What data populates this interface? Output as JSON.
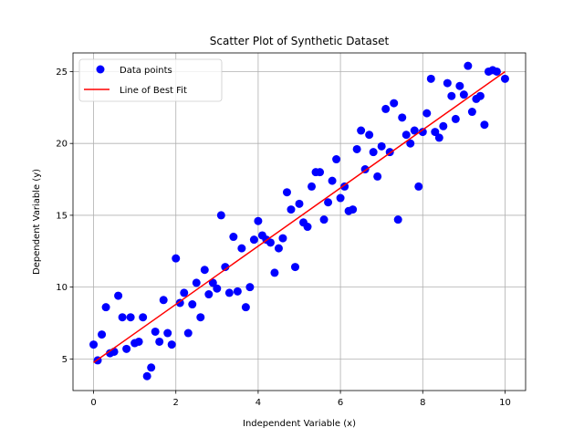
{
  "chart_data": {
    "type": "scatter",
    "title": "Scatter Plot of Synthetic Dataset",
    "xlabel": "Independent Variable (x)",
    "ylabel": "Dependent Variable (y)",
    "xlim": [
      -0.5,
      10.5
    ],
    "ylim": [
      2.8,
      26.3
    ],
    "xticks": [
      0,
      2,
      4,
      6,
      8,
      10
    ],
    "yticks": [
      5,
      10,
      15,
      20,
      25
    ],
    "grid": true,
    "legend_position": "top-left",
    "series": [
      {
        "name": "Data points",
        "kind": "scatter",
        "color": "#0000ff",
        "points": [
          [
            0.0,
            6.0
          ],
          [
            0.1,
            4.9
          ],
          [
            0.2,
            6.7
          ],
          [
            0.3,
            8.6
          ],
          [
            0.4,
            5.4
          ],
          [
            0.5,
            5.5
          ],
          [
            0.6,
            9.4
          ],
          [
            0.7,
            7.9
          ],
          [
            0.8,
            5.7
          ],
          [
            0.9,
            7.9
          ],
          [
            1.0,
            6.1
          ],
          [
            1.1,
            6.2
          ],
          [
            1.2,
            7.9
          ],
          [
            1.3,
            3.8
          ],
          [
            1.4,
            4.4
          ],
          [
            1.5,
            6.9
          ],
          [
            1.6,
            6.2
          ],
          [
            1.7,
            9.1
          ],
          [
            1.8,
            6.8
          ],
          [
            1.9,
            6.0
          ],
          [
            2.0,
            12.0
          ],
          [
            2.1,
            8.9
          ],
          [
            2.2,
            9.6
          ],
          [
            2.3,
            6.8
          ],
          [
            2.4,
            8.8
          ],
          [
            2.5,
            10.3
          ],
          [
            2.6,
            7.9
          ],
          [
            2.7,
            11.2
          ],
          [
            2.8,
            9.5
          ],
          [
            2.9,
            10.3
          ],
          [
            3.0,
            9.9
          ],
          [
            3.1,
            15.0
          ],
          [
            3.2,
            11.4
          ],
          [
            3.3,
            9.6
          ],
          [
            3.4,
            13.5
          ],
          [
            3.5,
            9.7
          ],
          [
            3.6,
            12.7
          ],
          [
            3.7,
            8.6
          ],
          [
            3.8,
            10.0
          ],
          [
            3.9,
            13.3
          ],
          [
            4.0,
            14.6
          ],
          [
            4.1,
            13.6
          ],
          [
            4.2,
            13.3
          ],
          [
            4.3,
            13.1
          ],
          [
            4.4,
            11.0
          ],
          [
            4.5,
            12.7
          ],
          [
            4.6,
            13.4
          ],
          [
            4.7,
            16.6
          ],
          [
            4.8,
            15.4
          ],
          [
            4.9,
            11.4
          ],
          [
            5.0,
            15.8
          ],
          [
            5.1,
            14.5
          ],
          [
            5.2,
            14.2
          ],
          [
            5.3,
            17.0
          ],
          [
            5.4,
            18.0
          ],
          [
            5.5,
            18.0
          ],
          [
            5.6,
            14.7
          ],
          [
            5.7,
            15.9
          ],
          [
            5.8,
            17.4
          ],
          [
            5.9,
            18.9
          ],
          [
            6.0,
            16.2
          ],
          [
            6.1,
            17.0
          ],
          [
            6.2,
            15.3
          ],
          [
            6.3,
            15.4
          ],
          [
            6.4,
            19.6
          ],
          [
            6.5,
            20.9
          ],
          [
            6.6,
            18.2
          ],
          [
            6.7,
            20.6
          ],
          [
            6.8,
            19.4
          ],
          [
            6.9,
            17.7
          ],
          [
            7.0,
            19.8
          ],
          [
            7.1,
            22.4
          ],
          [
            7.2,
            19.4
          ],
          [
            7.3,
            22.8
          ],
          [
            7.4,
            14.7
          ],
          [
            7.5,
            21.8
          ],
          [
            7.6,
            20.6
          ],
          [
            7.7,
            20.0
          ],
          [
            7.8,
            20.9
          ],
          [
            7.9,
            17.0
          ],
          [
            8.0,
            20.8
          ],
          [
            8.1,
            22.1
          ],
          [
            8.2,
            24.5
          ],
          [
            8.3,
            20.8
          ],
          [
            8.4,
            20.4
          ],
          [
            8.5,
            21.2
          ],
          [
            8.6,
            24.2
          ],
          [
            8.7,
            23.3
          ],
          [
            8.8,
            21.7
          ],
          [
            8.9,
            24.0
          ],
          [
            9.0,
            23.4
          ],
          [
            9.1,
            25.4
          ],
          [
            9.2,
            22.2
          ],
          [
            9.3,
            23.1
          ],
          [
            9.4,
            23.3
          ],
          [
            9.5,
            21.3
          ],
          [
            9.6,
            25.0
          ],
          [
            9.7,
            25.1
          ],
          [
            9.8,
            25.0
          ],
          [
            10.0,
            24.5
          ]
        ]
      },
      {
        "name": "Line of Best Fit",
        "kind": "line",
        "color": "#ff0000",
        "points": [
          [
            0,
            4.75
          ],
          [
            10,
            25.0
          ]
        ]
      }
    ]
  }
}
